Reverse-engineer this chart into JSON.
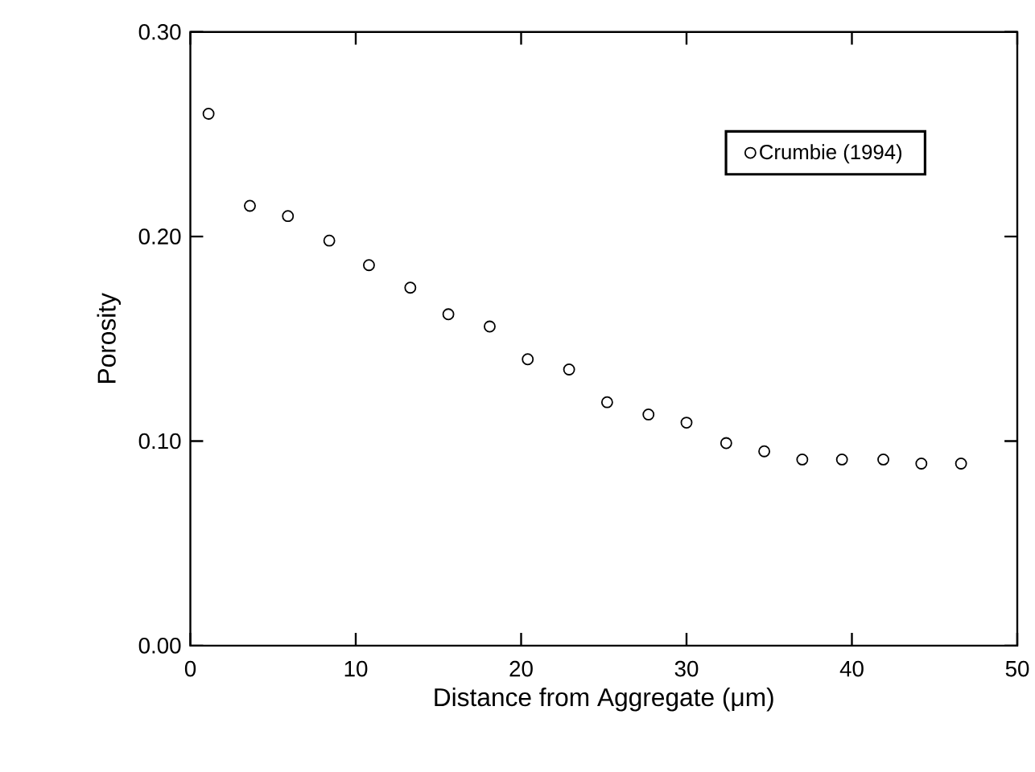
{
  "chart_data": {
    "type": "scatter",
    "xlabel": "Distance from Aggregate (μm)",
    "ylabel": "Porosity",
    "series": [
      {
        "name": "Crumbie (1994)",
        "color": "#000000",
        "x": [
          1.1,
          3.6,
          5.9,
          8.4,
          10.8,
          13.3,
          15.6,
          18.1,
          20.4,
          22.9,
          25.2,
          27.7,
          30.0,
          32.4,
          34.7,
          37.0,
          39.4,
          41.9,
          44.2,
          46.6
        ],
        "values": [
          0.26,
          0.215,
          0.21,
          0.198,
          0.186,
          0.175,
          0.162,
          0.156,
          0.14,
          0.135,
          0.119,
          0.113,
          0.109,
          0.099,
          0.095,
          0.091,
          0.091,
          0.091,
          0.089,
          0.089
        ]
      }
    ],
    "xlim": [
      0,
      50
    ],
    "xticks": [
      0,
      10,
      20,
      30,
      40,
      50
    ],
    "ylim": [
      0,
      0.3
    ],
    "yticks": [
      {
        "value": 0,
        "label": "0.00"
      },
      {
        "value": 0.1,
        "label": "0.10"
      },
      {
        "value": 0.2,
        "label": "0.20"
      },
      {
        "value": 0.3,
        "label": "0.30"
      }
    ],
    "marker": "circle",
    "legend": "top right",
    "grid": false
  }
}
